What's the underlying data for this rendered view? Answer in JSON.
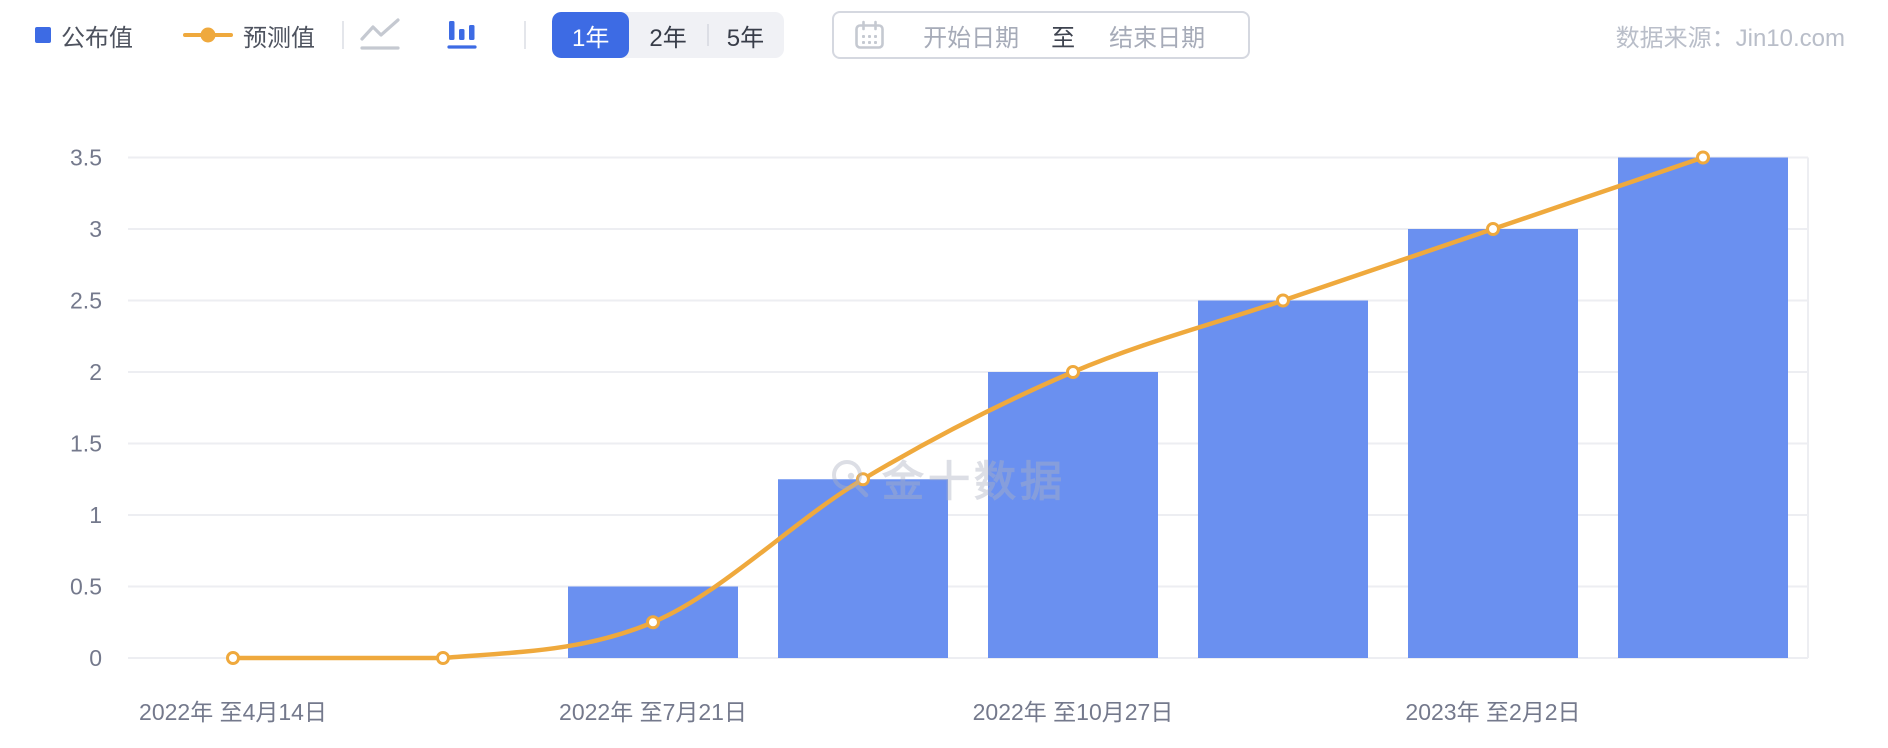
{
  "toolbar": {
    "legend": [
      {
        "label": "公布值",
        "marker": "bar-square",
        "color": "#3D6BE4"
      },
      {
        "label": "预测值",
        "marker": "line-dot",
        "color": "#EFA93D"
      }
    ],
    "chart_type_toggle": {
      "line_icon": "line-chart-icon",
      "bar_icon": "bar-chart-icon",
      "active": "bar"
    },
    "period_options": [
      {
        "label": "1年",
        "active": true
      },
      {
        "label": "2年",
        "active": false
      },
      {
        "label": "5年",
        "active": false
      }
    ],
    "date_range": {
      "calendar_icon": "calendar-icon",
      "start_placeholder": "开始日期",
      "separator": "至",
      "end_placeholder": "结束日期"
    },
    "source": "数据来源：Jin10.com"
  },
  "watermark": {
    "text": "金十数据"
  },
  "colors": {
    "accent_blue": "#3D6BE4",
    "bar_blue": "#6A90F0",
    "line_orange": "#EFA93D",
    "axis_text": "#74798C",
    "gridline": "#EDEEF2"
  },
  "chart_data": {
    "type": "bar",
    "subtype": "bar+line combo",
    "n_slots": 8,
    "x_tick_labels": [
      "2022年 至4月14日",
      "2022年 至7月21日",
      "2022年 至10月27日",
      "2023年 至2月2日"
    ],
    "x_tick_label_slot_index": [
      0,
      2,
      4,
      6
    ],
    "series": [
      {
        "name": "公布值",
        "type": "bar",
        "color": "#6A90F0",
        "values": [
          0,
          0,
          0.5,
          1.25,
          2,
          2.5,
          3,
          3.5
        ]
      },
      {
        "name": "预测值",
        "type": "line",
        "color": "#EFA93D",
        "values": [
          0,
          0,
          0.25,
          1.25,
          2,
          2.5,
          3,
          3.5
        ]
      }
    ],
    "y_ticks": [
      0,
      0.5,
      1,
      1.5,
      2,
      2.5,
      3,
      3.5
    ],
    "ylim": [
      0,
      3.5
    ],
    "grid": "horizontal gridlines at every 0.5, faint vertical line at right plot edge",
    "legend_position": "top-left",
    "ylabel": "",
    "xlabel": ""
  }
}
